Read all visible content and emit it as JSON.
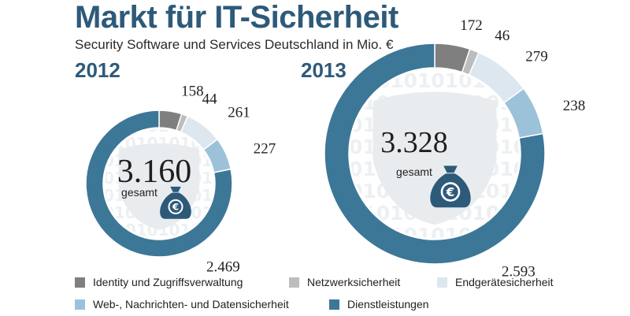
{
  "header": {
    "title": "Markt für IT-Sicherheit",
    "subtitle": "Security Software und Services Deutschland in Mio. €"
  },
  "colors": {
    "identity": "#7f7f7f",
    "netzwerk": "#bdbdbd",
    "endgeraete": "#dde7ef",
    "web": "#9cc2da",
    "dienst": "#3c7797",
    "accent": "#2e5a7a"
  },
  "chart_data": [
    {
      "type": "donut",
      "title": "2012",
      "total_label": "3.160",
      "total_caption": "gesamt",
      "categories": [
        "Identity und Zugriffsverwaltung",
        "Netzwerksicherheit",
        "Endgerätesicherheit",
        "Web-, Nachrichten- und Datensicherheit",
        "Dienstleistungen"
      ],
      "values": [
        158,
        44,
        261,
        227,
        2469
      ],
      "value_labels": [
        "158",
        "44",
        "261",
        "227",
        "2.469"
      ]
    },
    {
      "type": "donut",
      "title": "2013",
      "total_label": "3.328",
      "total_caption": "gesamt",
      "categories": [
        "Identity und Zugriffsverwaltung",
        "Netzwerksicherheit",
        "Endgerätesicherheit",
        "Web-, Nachrichten- und Datensicherheit",
        "Dienstleistungen"
      ],
      "values": [
        172,
        46,
        279,
        238,
        2593
      ],
      "value_labels": [
        "172",
        "46",
        "279",
        "238",
        "2.593"
      ]
    }
  ],
  "legend": [
    {
      "label": "Identity und Zugriffsverwaltung",
      "color": "#7f7f7f"
    },
    {
      "label": "Netzwerksicherheit",
      "color": "#bdbdbd"
    },
    {
      "label": "Endgerätesicherheit",
      "color": "#dde7ef"
    },
    {
      "label": "Web-, Nachrichten- und Datensicherheit",
      "color": "#9cc2da"
    },
    {
      "label": "Dienstleistungen",
      "color": "#3c7797"
    }
  ]
}
